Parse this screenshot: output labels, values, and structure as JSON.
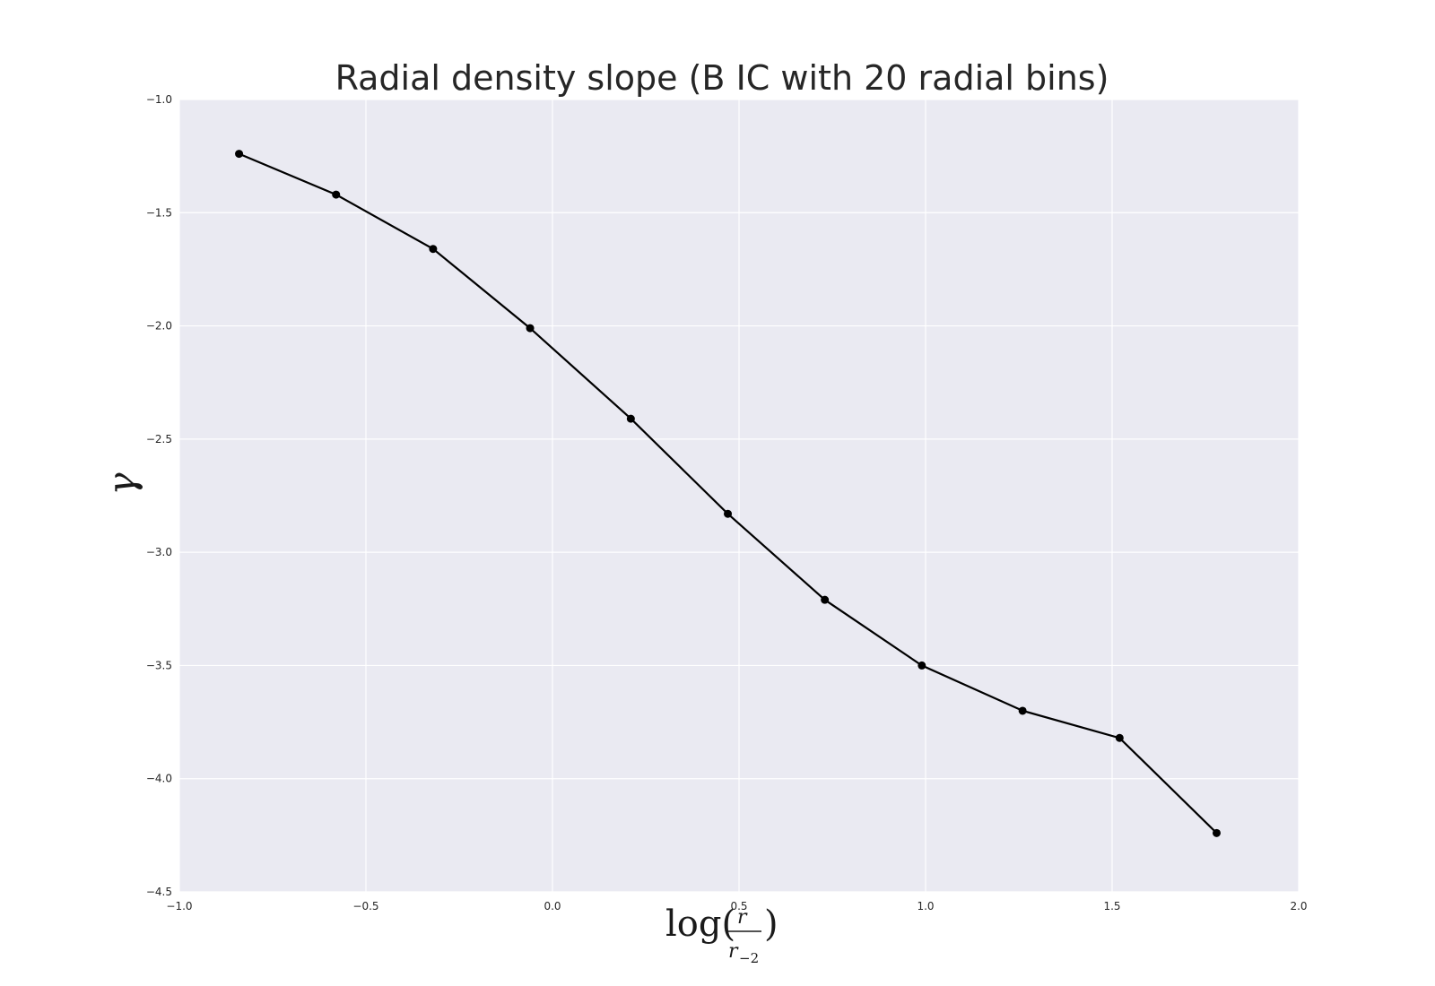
{
  "chart_data": {
    "type": "line",
    "title": "Radial density slope  (B IC with 20 radial bins)",
    "xlabel": "log(r / r₋₂)",
    "ylabel": "γ",
    "xlim": [
      -1.0,
      2.0
    ],
    "ylim": [
      -4.5,
      -1.0
    ],
    "x_ticks": [
      -1.0,
      -0.5,
      0.0,
      0.5,
      1.0,
      1.5,
      2.0
    ],
    "x_tick_labels": [
      "−1.0",
      "−0.5",
      "0.0",
      "0.5",
      "1.0",
      "1.5",
      "2.0"
    ],
    "y_ticks": [
      -1.0,
      -1.5,
      -2.0,
      -2.5,
      -3.0,
      -3.5,
      -4.0,
      -4.5
    ],
    "y_tick_labels": [
      "−1.0",
      "−1.5",
      "−2.0",
      "−2.5",
      "−3.0",
      "−3.5",
      "−4.0",
      "−4.5"
    ],
    "grid": true,
    "background": "#eaeaf2",
    "line_color": "#000000",
    "series": [
      {
        "x": [
          -0.84,
          -0.58,
          -0.32,
          -0.06,
          0.21,
          0.47,
          0.73,
          0.99,
          1.26,
          1.52,
          1.78
        ],
        "y": [
          -1.24,
          -1.42,
          -1.66,
          -2.01,
          -2.41,
          -2.83,
          -3.21,
          -3.5,
          -3.7,
          -3.82,
          -4.24
        ]
      }
    ]
  }
}
